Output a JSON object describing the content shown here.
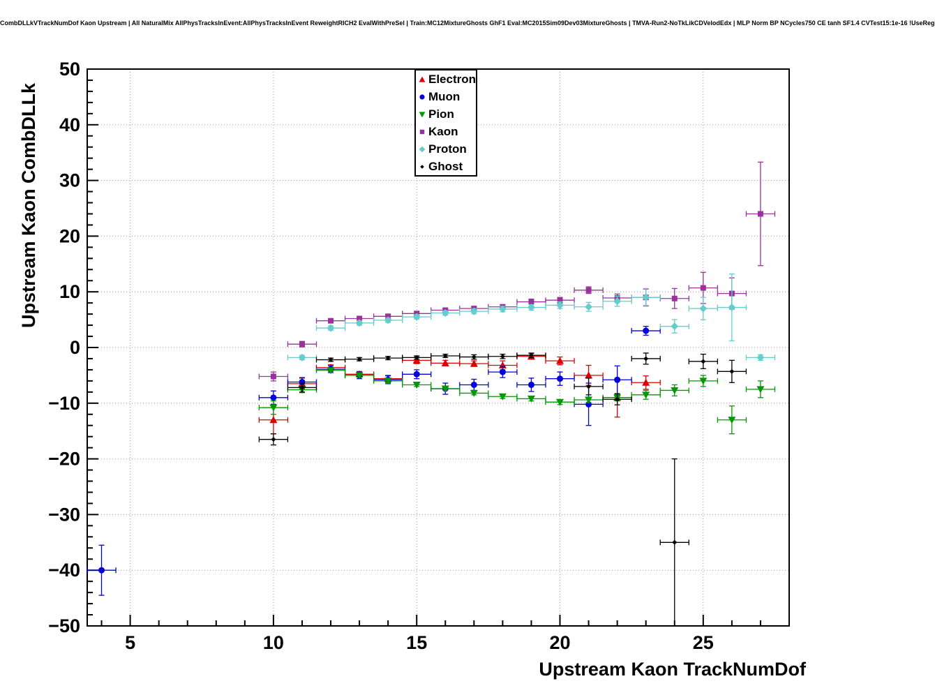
{
  "title": "CombDLLkVTrackNumDof Kaon Upstream | All NaturalMix AllPhysTracksInEvent:AllPhysTracksInEvent ReweightRICH2 EvalWithPreSel | Train:MC12MixtureGhosts GhF1 Eval:MC2015Sim09Dev03MixtureGhosts | TMVA-Run2-NoTkLikCDVelodEdx | MLP Norm BP NCycles750 CE tanh SF1.4 CVTest15:1e-16 !UseReg",
  "chart_data": {
    "type": "scatter",
    "title": "CombDLLkVTrackNumDof Kaon Upstream",
    "xlabel": "Upstream Kaon TrackNumDof",
    "ylabel": "Upstream Kaon CombDLLk",
    "xlim": [
      3.5,
      28
    ],
    "ylim": [
      -50,
      50
    ],
    "xticks": [
      5,
      10,
      15,
      20,
      25
    ],
    "yticks": [
      -50,
      -40,
      -30,
      -20,
      -10,
      0,
      10,
      20,
      30,
      40,
      50
    ],
    "x_minor_step": 1,
    "y_minor_step": 2,
    "grid": true,
    "grid_style": "dotted",
    "legend_position": "top-center",
    "series": [
      {
        "name": "Electron",
        "marker": "triangle-up",
        "color": "#dd0000",
        "xerr": 0.5,
        "points": [
          [
            10,
            -13,
            2.5
          ],
          [
            11,
            -6.5,
            1
          ],
          [
            12,
            -3.6,
            0.5
          ],
          [
            13,
            -4.8,
            0.5
          ],
          [
            14,
            -5.6,
            0.6
          ],
          [
            15,
            -2.3,
            0.6
          ],
          [
            16,
            -2.8,
            0.5
          ],
          [
            17,
            -2.9,
            0.5
          ],
          [
            18,
            -3.2,
            0.8
          ],
          [
            19,
            -1.6,
            0.5
          ],
          [
            20,
            -2.4,
            0.7
          ],
          [
            21,
            -5,
            1.8
          ],
          [
            22,
            -9,
            3.5
          ],
          [
            23,
            -6.3,
            1.2
          ]
        ]
      },
      {
        "name": "Muon",
        "marker": "circle",
        "color": "#0000dd",
        "xerr": 0.5,
        "points": [
          [
            4,
            -40,
            4.5
          ],
          [
            10,
            -9,
            1.2
          ],
          [
            11,
            -6.2,
            0.8
          ],
          [
            12,
            -3.9,
            0.6
          ],
          [
            13,
            -5,
            0.6
          ],
          [
            14,
            -5.8,
            0.7
          ],
          [
            15,
            -4.8,
            0.8
          ],
          [
            16,
            -7.4,
            1
          ],
          [
            17,
            -6.7,
            1
          ],
          [
            18,
            -4.4,
            1
          ],
          [
            19,
            -6.7,
            1.2
          ],
          [
            20,
            -5.6,
            1.2
          ],
          [
            21,
            -10.2,
            3.8
          ],
          [
            22,
            -5.8,
            2.5
          ],
          [
            23,
            3,
            0.8
          ]
        ]
      },
      {
        "name": "Pion",
        "marker": "triangle-down",
        "color": "#009900",
        "xerr": 0.5,
        "points": [
          [
            10,
            -10.8,
            1.2
          ],
          [
            11,
            -7.6,
            0.5
          ],
          [
            12,
            -4.1,
            0.3
          ],
          [
            13,
            -5,
            0.3
          ],
          [
            14,
            -6,
            0.3
          ],
          [
            15,
            -6.7,
            0.3
          ],
          [
            16,
            -7.4,
            0.3
          ],
          [
            17,
            -8.2,
            0.3
          ],
          [
            18,
            -8.8,
            0.35
          ],
          [
            19,
            -9.2,
            0.4
          ],
          [
            20,
            -9.8,
            0.45
          ],
          [
            21,
            -9.4,
            0.5
          ],
          [
            22,
            -9,
            0.6
          ],
          [
            23,
            -8.5,
            0.8
          ],
          [
            24,
            -7.7,
            1
          ],
          [
            25,
            -6,
            1
          ],
          [
            26,
            -13,
            2.5
          ],
          [
            27,
            -7.5,
            1.5
          ]
        ]
      },
      {
        "name": "Kaon",
        "marker": "square",
        "color": "#993399",
        "xerr": 0.5,
        "points": [
          [
            10,
            -5.2,
            0.8
          ],
          [
            11,
            0.6,
            0.5
          ],
          [
            12,
            4.8,
            0.3
          ],
          [
            13,
            5.2,
            0.3
          ],
          [
            14,
            5.6,
            0.3
          ],
          [
            15,
            6.1,
            0.3
          ],
          [
            16,
            6.7,
            0.3
          ],
          [
            17,
            7,
            0.35
          ],
          [
            18,
            7.3,
            0.4
          ],
          [
            19,
            8.2,
            0.5
          ],
          [
            20,
            8.5,
            0.5
          ],
          [
            21,
            10.3,
            0.6
          ],
          [
            22,
            8.9,
            0.7
          ],
          [
            23,
            9,
            1.5
          ],
          [
            24,
            8.8,
            1.8
          ],
          [
            25,
            10.7,
            2.8
          ],
          [
            26,
            9.7,
            2.8
          ],
          [
            27,
            24,
            9.3
          ]
        ]
      },
      {
        "name": "Proton",
        "marker": "diamond",
        "color": "#66cccc",
        "xerr": 0.5,
        "points": [
          [
            11,
            -1.8,
            0.4
          ],
          [
            12,
            3.5,
            0.4
          ],
          [
            13,
            4.4,
            0.4
          ],
          [
            14,
            4.9,
            0.4
          ],
          [
            15,
            5.5,
            0.4
          ],
          [
            16,
            6.2,
            0.4
          ],
          [
            17,
            6.5,
            0.45
          ],
          [
            18,
            6.9,
            0.5
          ],
          [
            19,
            7.2,
            0.5
          ],
          [
            20,
            7.6,
            0.6
          ],
          [
            21,
            7.3,
            0.8
          ],
          [
            22,
            8.3,
            0.9
          ],
          [
            23,
            9,
            1.6
          ],
          [
            24,
            3.8,
            1.2
          ],
          [
            25,
            7,
            2
          ],
          [
            26,
            7.2,
            6
          ],
          [
            27,
            -1.8,
            0.5
          ]
        ]
      },
      {
        "name": "Ghost",
        "marker": "small-diamond",
        "color": "#000000",
        "xerr": 0.5,
        "points": [
          [
            10,
            -16.5,
            1
          ],
          [
            11,
            -7.2,
            0.8
          ],
          [
            12,
            -2.2,
            0.3
          ],
          [
            13,
            -2.1,
            0.3
          ],
          [
            14,
            -1.9,
            0.3
          ],
          [
            15,
            -1.8,
            0.3
          ],
          [
            16,
            -1.5,
            0.3
          ],
          [
            17,
            -1.7,
            0.4
          ],
          [
            18,
            -1.6,
            0.4
          ],
          [
            19,
            -1.4,
            0.4
          ],
          [
            21,
            -7,
            1.5
          ],
          [
            22,
            -9.3,
            1
          ],
          [
            23,
            -2,
            1
          ],
          [
            24,
            -35,
            15
          ],
          [
            25,
            -2.5,
            1.3
          ],
          [
            26,
            -4.3,
            2
          ]
        ]
      }
    ]
  }
}
